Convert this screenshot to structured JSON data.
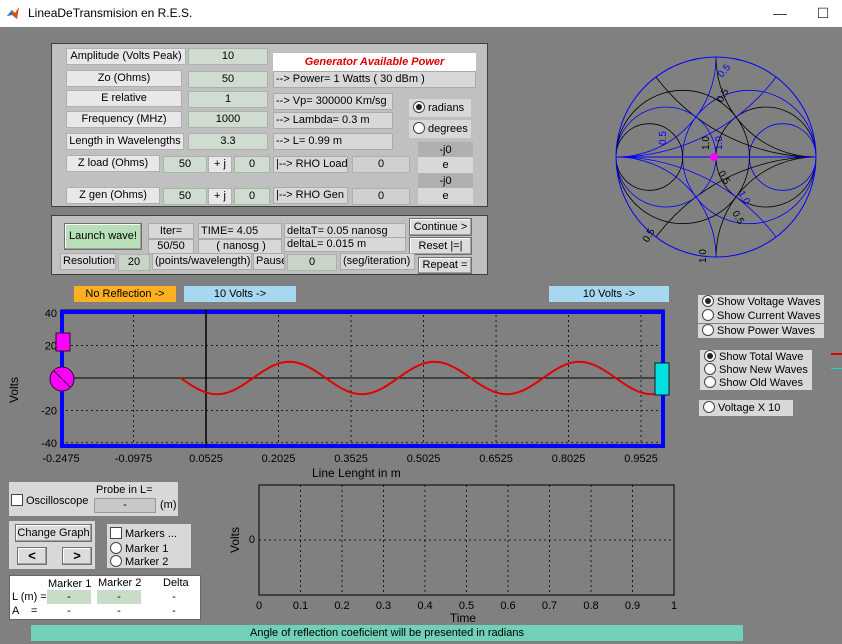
{
  "window": {
    "title": "LineaDeTransmision en R.E.S.",
    "minimize": "—",
    "maximize": "☐"
  },
  "params": {
    "amplitude": {
      "label": "Amplitude (Volts Peak)",
      "value": "10"
    },
    "zo": {
      "label": "Zo (Ohms)",
      "value": "50"
    },
    "e_relative": {
      "label": "E relative",
      "value": "1"
    },
    "frequency": {
      "label": "Frequency (MHz)",
      "value": "1000"
    },
    "length": {
      "label": "Length in Wavelengths",
      "value": "3.3"
    },
    "zload": {
      "label": "Z load (Ohms)",
      "real": "50",
      "plusj": "+ j",
      "imag": "0"
    },
    "zgen": {
      "label": "Z gen (Ohms)",
      "real": "50",
      "plusj": "+ j",
      "imag": "0"
    }
  },
  "info": {
    "header": "Generator Available Power",
    "power": "--> Power= 1 Watts ( 30 dBm )",
    "vp": "--> Vp= 300000 Km/sg",
    "lambda": "--> Lambda= 0.3 m",
    "L": "--> L= 0.99 m",
    "rho_load": "|--> RHO Load =",
    "rho_load_val": "0",
    "rho_gen": "|--> RHO Gen  =",
    "rho_gen_val": "0",
    "exp1": "-j0",
    "e1": "e",
    "exp2": "-j0",
    "e2": "e"
  },
  "units": {
    "radians": "radians",
    "degrees": "degrees"
  },
  "sim": {
    "launch": "Launch wave!",
    "iter_label": "Iter=",
    "iter_value": "50/50",
    "time_label": "TIME= 4.05",
    "time_unit": "( nanosg )",
    "deltaT": "deltaT= 0.05 nanosg",
    "deltaL": "deltaL= 0.015 m",
    "continue": "Continue >",
    "reset": "Reset  |=|",
    "repeat": "Repeat =",
    "resolution_label": "Resolution",
    "resolution_value": "20",
    "resolution_unit": "(points/wavelength)",
    "pause_label": "Pause",
    "pause_value": "0",
    "pause_unit": "(seg/iteration)"
  },
  "indicators": {
    "no_reflection": "No Reflection ->",
    "left_volts": "10 Volts ->",
    "right_volts": "10 Volts ->"
  },
  "wave_options": {
    "show_voltage": "Show Voltage Waves",
    "show_current": "Show Current Waves",
    "show_power": "Show Power Waves"
  },
  "wave_type": {
    "total": "Show Total Wave",
    "new": "Show New Waves",
    "old": "Show Old Waves"
  },
  "voltage_x10": "Voltage X 10",
  "smith": {
    "labels": [
      "0.5",
      "1.0",
      "0.5",
      "0.5",
      "1.0",
      "0.5",
      "1.0",
      "0.5",
      "1.0",
      "0.5"
    ]
  },
  "line_chart_data": {
    "type": "line",
    "xlabel": "Line Lenght in m",
    "ylabel": "Volts",
    "xlim": [
      -0.2475,
      1.0
    ],
    "ylim": [
      -42,
      42
    ],
    "xticks": [
      "-0.2475",
      "-0.0975",
      "0.0525",
      "0.2025",
      "0.3525",
      "0.5025",
      "0.6525",
      "0.8025",
      "0.9525"
    ],
    "yticks": [
      "40",
      "20",
      "0",
      "-20",
      "-40"
    ],
    "amplitude": 10,
    "wavelength": 0.3,
    "line_start": 0,
    "line_end": 0.99,
    "cursor_x": 0.0525
  },
  "probe_chart_data": {
    "type": "line",
    "xlabel": "Time",
    "ylabel": "Volts",
    "xticks": [
      "0",
      "0.1",
      "0.2",
      "0.3",
      "0.4",
      "0.5",
      "0.6",
      "0.7",
      "0.8",
      "0.9",
      "1"
    ],
    "yticks": [
      "0"
    ]
  },
  "probe": {
    "oscilloscope": "Oscilloscope",
    "probe_label": "Probe in L=",
    "probe_value": "-",
    "unit": "(m)"
  },
  "graph": {
    "change": "Change Graph",
    "prev": "<",
    "next": ">"
  },
  "markers": {
    "markers": "Markers ...",
    "marker1": "Marker 1",
    "marker2": "Marker 2"
  },
  "marker_table": {
    "h1": "Marker 1",
    "h2": "Marker 2",
    "h3": "Delta",
    "row1_label": "L (m) =",
    "row2_label": "A    =",
    "l_m1": "-",
    "l_m2": "-",
    "l_delta": "-",
    "a_m1": "-",
    "a_m2": "-",
    "a_delta": "-"
  },
  "status": "Angle of reflection coeficient will be presented in radians",
  "colors": {
    "wave": "#e00000",
    "frame": "#0000e0",
    "generator": "#ff00ff",
    "load": "#00e0e0",
    "smith": "#0000ff"
  }
}
